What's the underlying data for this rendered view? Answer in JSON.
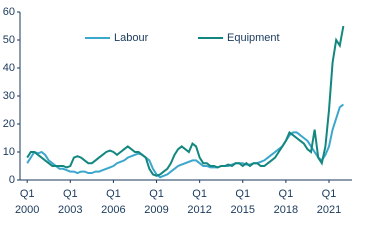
{
  "chart_data": {
    "type": "line",
    "x": [
      2000,
      2000.25,
      2000.5,
      2000.75,
      2001,
      2001.25,
      2001.5,
      2001.75,
      2002,
      2002.25,
      2002.5,
      2002.75,
      2003,
      2003.25,
      2003.5,
      2003.75,
      2004,
      2004.25,
      2004.5,
      2004.75,
      2005,
      2005.25,
      2005.5,
      2005.75,
      2006,
      2006.25,
      2006.5,
      2006.75,
      2007,
      2007.25,
      2007.5,
      2007.75,
      2008,
      2008.25,
      2008.5,
      2008.75,
      2009,
      2009.25,
      2009.5,
      2009.75,
      2010,
      2010.25,
      2010.5,
      2010.75,
      2011,
      2011.25,
      2011.5,
      2011.75,
      2012,
      2012.25,
      2012.5,
      2012.75,
      2013,
      2013.25,
      2013.5,
      2013.75,
      2014,
      2014.25,
      2014.5,
      2014.75,
      2015,
      2015.25,
      2015.5,
      2015.75,
      2016,
      2016.25,
      2016.5,
      2016.75,
      2017,
      2017.25,
      2017.5,
      2017.75,
      2018,
      2018.25,
      2018.5,
      2018.75,
      2019,
      2019.25,
      2019.5,
      2019.75,
      2020,
      2020.25,
      2020.5,
      2020.75,
      2021,
      2021.25,
      2021.5,
      2021.75,
      2022
    ],
    "series": [
      {
        "name": "Labour",
        "color": "#3ba7cc",
        "values": [
          6,
          8,
          10,
          9.5,
          10,
          9,
          7,
          6,
          5,
          4,
          4,
          3.5,
          3,
          3,
          2.5,
          3,
          3,
          2.5,
          2.5,
          3,
          3,
          3.5,
          4,
          4.5,
          5,
          6,
          6.5,
          7,
          8,
          8.5,
          9,
          9.5,
          9,
          8,
          7,
          4,
          2,
          1,
          1.5,
          2,
          3,
          4,
          5,
          5.5,
          6,
          6.5,
          7,
          7,
          6,
          5,
          5,
          4.5,
          4.5,
          4.5,
          5,
          5,
          5,
          5.5,
          6,
          6,
          6,
          5.5,
          5.5,
          6,
          6,
          6.5,
          7,
          8,
          9,
          10,
          11,
          12,
          14,
          16,
          17,
          17,
          16,
          15,
          14,
          12,
          10,
          8,
          7,
          9,
          12,
          18,
          22,
          26,
          27
        ]
      },
      {
        "name": "Equipment",
        "color": "#13877f",
        "values": [
          8,
          10,
          10,
          9,
          8,
          7,
          6,
          5,
          5,
          5,
          5,
          4.5,
          5,
          8,
          8.5,
          8,
          7,
          6,
          6,
          7,
          8,
          9,
          10,
          10.5,
          10,
          9,
          10,
          11,
          12,
          11,
          10,
          10,
          9,
          8,
          4,
          2,
          1.5,
          2,
          3,
          4,
          6,
          9,
          11,
          12,
          11,
          10,
          13,
          12,
          8,
          6,
          6,
          5,
          5,
          4.5,
          5,
          5,
          5.5,
          5,
          6,
          6,
          5,
          6,
          5,
          6,
          6,
          5,
          5,
          6,
          7,
          8,
          10,
          12,
          14,
          17,
          16,
          15,
          14,
          13,
          11,
          10,
          18,
          8,
          6,
          12,
          25,
          42,
          50,
          48,
          55
        ]
      }
    ],
    "xlim": [
      1999.5,
      2022.6
    ],
    "ylim": [
      0,
      60
    ],
    "xticks": [
      {
        "value": 2000,
        "label": [
          "Q1",
          "2000"
        ]
      },
      {
        "value": 2003,
        "label": [
          "Q1",
          "2003"
        ]
      },
      {
        "value": 2006,
        "label": [
          "Q1",
          "2006"
        ]
      },
      {
        "value": 2009,
        "label": [
          "Q1",
          "2009"
        ]
      },
      {
        "value": 2012,
        "label": [
          "Q1",
          "2012"
        ]
      },
      {
        "value": 2015,
        "label": [
          "Q1",
          "2015"
        ]
      },
      {
        "value": 2018,
        "label": [
          "Q1",
          "2018"
        ]
      },
      {
        "value": 2021,
        "label": [
          "Q1",
          "2021"
        ]
      }
    ],
    "yticks": [
      0,
      10,
      20,
      30,
      40,
      50,
      60
    ]
  }
}
